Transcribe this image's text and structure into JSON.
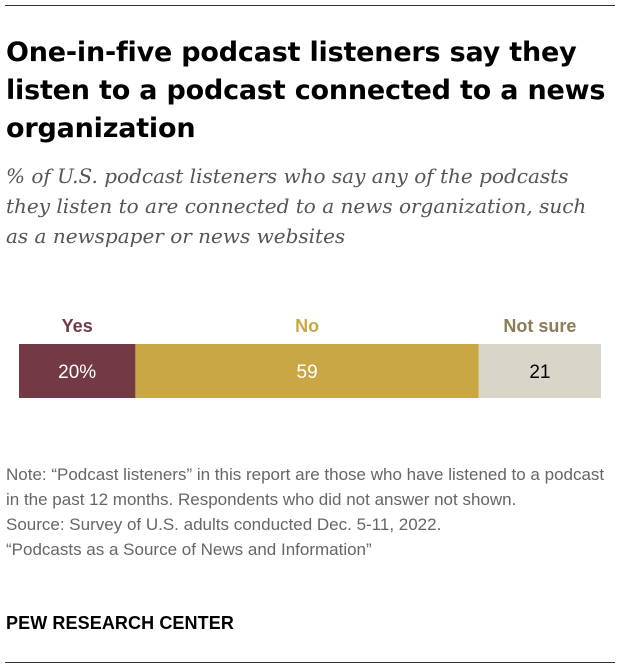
{
  "title": "One-in-five podcast listeners say they listen to a podcast connected to a news organization",
  "subtitle": "% of U.S. podcast listeners who say any of the podcasts they listen to are connected to a news organization, such as a newspaper or news websites",
  "chart_data": {
    "type": "bar",
    "orientation": "horizontal-stacked",
    "categories": [
      "Yes",
      "No",
      "Not sure"
    ],
    "values": [
      20,
      59,
      21
    ],
    "value_labels": [
      "20%",
      "59",
      "21"
    ],
    "colors": [
      "#733a45",
      "#c9a744",
      "#d9d6c9"
    ],
    "label_colors": [
      "#733a45",
      "#c9a744",
      "#8c7d57"
    ],
    "value_text_colors": [
      "#ffffff",
      "#ffffff",
      "#000000"
    ],
    "xlim": [
      0,
      100
    ]
  },
  "note": {
    "line1": "Note: “Podcast listeners” in this report are those who have listened to a podcast in the past 12 months. Respondents who did not answer not shown.",
    "source": "Source: Survey of U.S. adults conducted Dec. 5-11, 2022.",
    "report": "“Podcasts as a Source of News and Information”"
  },
  "brand": "PEW RESEARCH CENTER"
}
